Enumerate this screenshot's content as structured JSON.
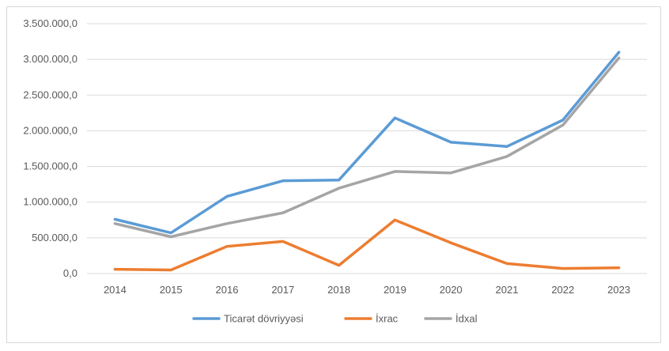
{
  "chart_data": {
    "type": "line",
    "categories": [
      "2014",
      "2015",
      "2016",
      "2017",
      "2018",
      "2019",
      "2020",
      "2021",
      "2022",
      "2023"
    ],
    "series": [
      {
        "name": "Ticarət dövriyyəsi",
        "color": "#5b9bd5",
        "values": [
          760000,
          570000,
          1080000,
          1300000,
          1310000,
          2180000,
          1840000,
          1780000,
          2150000,
          3100000
        ]
      },
      {
        "name": "İxrac",
        "color": "#ed7d31",
        "values": [
          60000,
          50000,
          380000,
          450000,
          115000,
          750000,
          430000,
          140000,
          70000,
          80000
        ]
      },
      {
        "name": "İdxal",
        "color": "#a5a5a5",
        "values": [
          700000,
          515000,
          700000,
          850000,
          1195000,
          1430000,
          1410000,
          1640000,
          2080000,
          3020000
        ]
      }
    ],
    "y_ticks": [
      "0,0",
      "500.000,0",
      "1.000.000,0",
      "1.500.000,0",
      "2.000.000,0",
      "2.500.000,0",
      "3.000.000,0",
      "3.500.000,0"
    ],
    "ylim": [
      0,
      3500000
    ],
    "grid": true,
    "legend_position": "bottom"
  }
}
